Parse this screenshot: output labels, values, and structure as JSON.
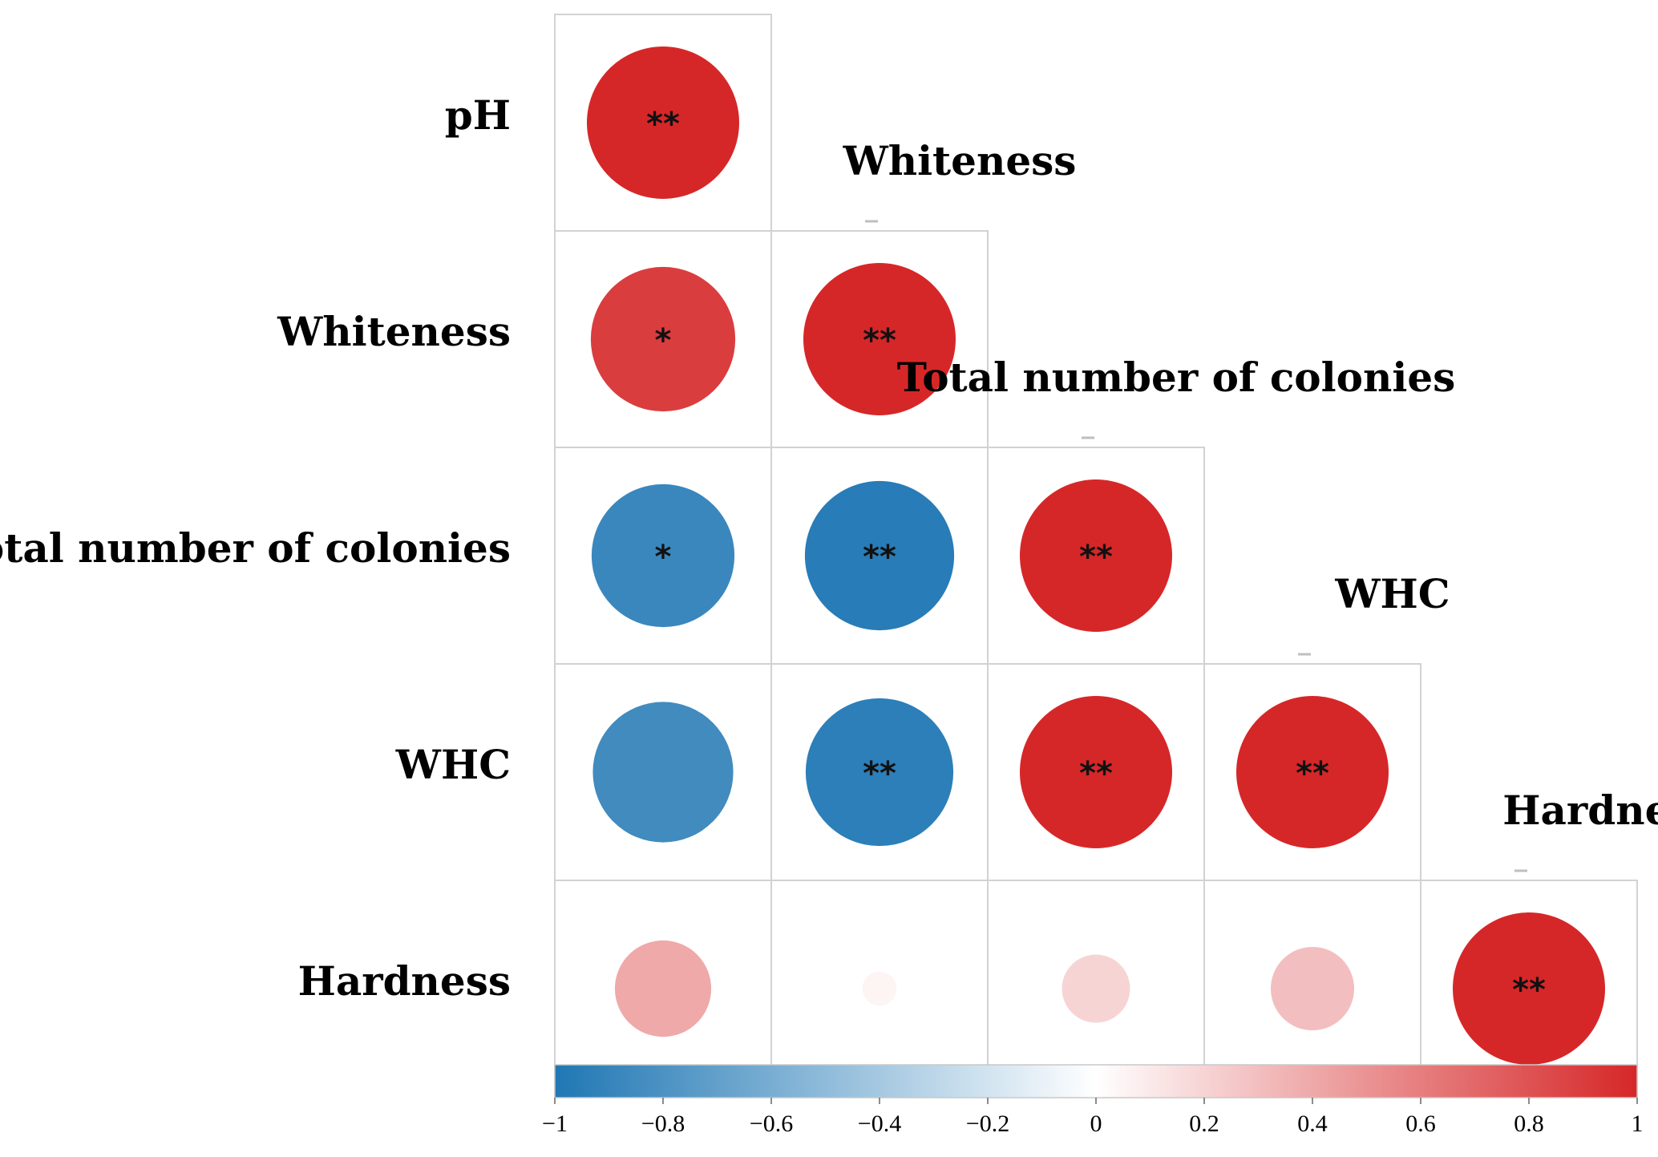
{
  "chart_data": {
    "type": "correlation-matrix",
    "variables": [
      "pH",
      "Whiteness",
      "Total number of colonies",
      "WHC",
      "Hardness"
    ],
    "cells": [
      {
        "row": 0,
        "col": 0,
        "r": 1.0,
        "sig": "**"
      },
      {
        "row": 1,
        "col": 0,
        "r": 0.9,
        "sig": "*"
      },
      {
        "row": 1,
        "col": 1,
        "r": 1.0,
        "sig": "**"
      },
      {
        "row": 2,
        "col": 0,
        "r": -0.88,
        "sig": "*"
      },
      {
        "row": 2,
        "col": 1,
        "r": -0.96,
        "sig": "**"
      },
      {
        "row": 2,
        "col": 2,
        "r": 1.0,
        "sig": "**"
      },
      {
        "row": 3,
        "col": 0,
        "r": -0.85,
        "sig": ""
      },
      {
        "row": 3,
        "col": 1,
        "r": -0.94,
        "sig": "**"
      },
      {
        "row": 3,
        "col": 2,
        "r": 1.0,
        "sig": "**"
      },
      {
        "row": 3,
        "col": 3,
        "r": 1.0,
        "sig": "**"
      },
      {
        "row": 4,
        "col": 0,
        "r": 0.4,
        "sig": ""
      },
      {
        "row": 4,
        "col": 1,
        "r": 0.05,
        "sig": ""
      },
      {
        "row": 4,
        "col": 2,
        "r": 0.2,
        "sig": ""
      },
      {
        "row": 4,
        "col": 3,
        "r": 0.3,
        "sig": ""
      },
      {
        "row": 4,
        "col": 4,
        "r": 1.0,
        "sig": "**"
      }
    ],
    "colorbar": {
      "range": [
        -1,
        1
      ],
      "ticks": [
        -1,
        -0.8,
        -0.6,
        -0.4,
        -0.2,
        0,
        0.2,
        0.4,
        0.6,
        0.8,
        1
      ],
      "tick_labels": [
        "−1",
        "−0.8",
        "−0.6",
        "−0.4",
        "−0.2",
        "0",
        "0.2",
        "0.4",
        "0.6",
        "0.8",
        "1"
      ],
      "negative_color": "#1f77b4",
      "neutral_color": "#ffffff",
      "positive_color": "#d62728"
    }
  }
}
